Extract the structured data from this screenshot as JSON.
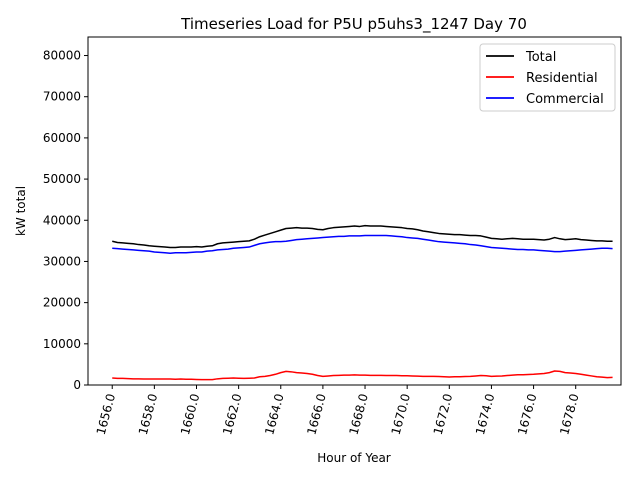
{
  "chart_data": {
    "type": "line",
    "title": "Timeseries Load for P5U p5uhs3_1247  Day 70",
    "xlabel": "Hour of Year",
    "ylabel": "kW total",
    "xlim": [
      1654.85,
      1680.15
    ],
    "ylim": [
      0,
      84500
    ],
    "x_ticks": [
      1656,
      1658,
      1660,
      1662,
      1664,
      1666,
      1668,
      1670,
      1672,
      1674,
      1676,
      1678
    ],
    "x_tick_labels": [
      "1656.0",
      "1658.0",
      "1660.0",
      "1662.0",
      "1664.0",
      "1666.0",
      "1668.0",
      "1670.0",
      "1672.0",
      "1674.0",
      "1676.0",
      "1678.0"
    ],
    "y_ticks": [
      0,
      10000,
      20000,
      30000,
      40000,
      50000,
      60000,
      70000,
      80000
    ],
    "y_tick_labels": [
      "0",
      "10000",
      "20000",
      "30000",
      "40000",
      "50000",
      "60000",
      "70000",
      "80000"
    ],
    "grid": false,
    "legend_position": "top-right",
    "x": [
      1656.0,
      1656.25,
      1656.5,
      1656.75,
      1657.0,
      1657.25,
      1657.5,
      1657.75,
      1658.0,
      1658.25,
      1658.5,
      1658.75,
      1659.0,
      1659.25,
      1659.5,
      1659.75,
      1660.0,
      1660.25,
      1660.5,
      1660.75,
      1661.0,
      1661.25,
      1661.5,
      1661.75,
      1662.0,
      1662.25,
      1662.5,
      1662.75,
      1663.0,
      1663.25,
      1663.5,
      1663.75,
      1664.0,
      1664.25,
      1664.5,
      1664.75,
      1665.0,
      1665.25,
      1665.5,
      1665.75,
      1666.0,
      1666.25,
      1666.5,
      1666.75,
      1667.0,
      1667.25,
      1667.5,
      1667.75,
      1668.0,
      1668.25,
      1668.5,
      1668.75,
      1669.0,
      1669.25,
      1669.5,
      1669.75,
      1670.0,
      1670.25,
      1670.5,
      1670.75,
      1671.0,
      1671.25,
      1671.5,
      1671.75,
      1672.0,
      1672.25,
      1672.5,
      1672.75,
      1673.0,
      1673.25,
      1673.5,
      1673.75,
      1674.0,
      1674.25,
      1674.5,
      1674.75,
      1675.0,
      1675.25,
      1675.5,
      1675.75,
      1676.0,
      1676.25,
      1676.5,
      1676.75,
      1677.0,
      1677.25,
      1677.5,
      1677.75,
      1678.0,
      1678.25,
      1678.5,
      1678.75,
      1679.0,
      1679.25,
      1679.5,
      1679.75
    ],
    "series": [
      {
        "name": "Total",
        "color": "#000000",
        "values": [
          34900,
          34600,
          34500,
          34400,
          34300,
          34100,
          34000,
          33800,
          33700,
          33600,
          33500,
          33400,
          33400,
          33500,
          33500,
          33500,
          33600,
          33500,
          33700,
          33800,
          34300,
          34500,
          34600,
          34700,
          34800,
          34900,
          35000,
          35400,
          36000,
          36400,
          36800,
          37200,
          37600,
          38000,
          38100,
          38200,
          38100,
          38100,
          38000,
          37800,
          37700,
          38000,
          38200,
          38300,
          38400,
          38500,
          38600,
          38500,
          38700,
          38600,
          38600,
          38600,
          38500,
          38400,
          38300,
          38200,
          38000,
          37900,
          37700,
          37400,
          37200,
          37000,
          36800,
          36700,
          36600,
          36500,
          36500,
          36400,
          36300,
          36300,
          36200,
          35900,
          35600,
          35500,
          35400,
          35500,
          35600,
          35500,
          35400,
          35400,
          35400,
          35300,
          35200,
          35400,
          35800,
          35500,
          35300,
          35400,
          35500,
          35300,
          35200,
          35100,
          35000,
          35000,
          34900,
          34900
        ]
      },
      {
        "name": "Residential",
        "color": "#ff0000",
        "values": [
          1700,
          1600,
          1600,
          1550,
          1500,
          1500,
          1450,
          1450,
          1450,
          1450,
          1450,
          1450,
          1400,
          1450,
          1400,
          1400,
          1350,
          1300,
          1300,
          1300,
          1500,
          1600,
          1650,
          1700,
          1650,
          1600,
          1650,
          1700,
          2000,
          2100,
          2300,
          2600,
          3000,
          3300,
          3200,
          3000,
          2900,
          2800,
          2600,
          2300,
          2100,
          2200,
          2300,
          2350,
          2400,
          2400,
          2450,
          2400,
          2400,
          2350,
          2350,
          2350,
          2300,
          2300,
          2300,
          2250,
          2250,
          2200,
          2150,
          2100,
          2100,
          2100,
          2050,
          2000,
          1950,
          2000,
          2000,
          2050,
          2100,
          2200,
          2300,
          2250,
          2100,
          2150,
          2200,
          2300,
          2400,
          2500,
          2500,
          2550,
          2600,
          2700,
          2800,
          3000,
          3400,
          3300,
          3000,
          2900,
          2800,
          2600,
          2400,
          2200,
          2000,
          1900,
          1800,
          1850
        ]
      },
      {
        "name": "Commercial",
        "color": "#0000ff",
        "values": [
          33200,
          33100,
          33000,
          32900,
          32800,
          32700,
          32600,
          32500,
          32300,
          32200,
          32100,
          32000,
          32100,
          32100,
          32100,
          32200,
          32300,
          32300,
          32500,
          32600,
          32800,
          32900,
          33000,
          33200,
          33300,
          33400,
          33500,
          33900,
          34300,
          34500,
          34700,
          34800,
          34800,
          34900,
          35100,
          35300,
          35400,
          35500,
          35600,
          35700,
          35800,
          35900,
          36000,
          36100,
          36100,
          36200,
          36200,
          36200,
          36300,
          36300,
          36300,
          36300,
          36300,
          36200,
          36100,
          36000,
          35800,
          35700,
          35600,
          35400,
          35200,
          35000,
          34800,
          34700,
          34600,
          34500,
          34400,
          34300,
          34100,
          34000,
          33800,
          33600,
          33400,
          33300,
          33200,
          33100,
          33000,
          32900,
          32900,
          32800,
          32800,
          32700,
          32600,
          32500,
          32400,
          32400,
          32500,
          32600,
          32700,
          32800,
          32900,
          33000,
          33100,
          33200,
          33200,
          33100
        ]
      }
    ]
  }
}
